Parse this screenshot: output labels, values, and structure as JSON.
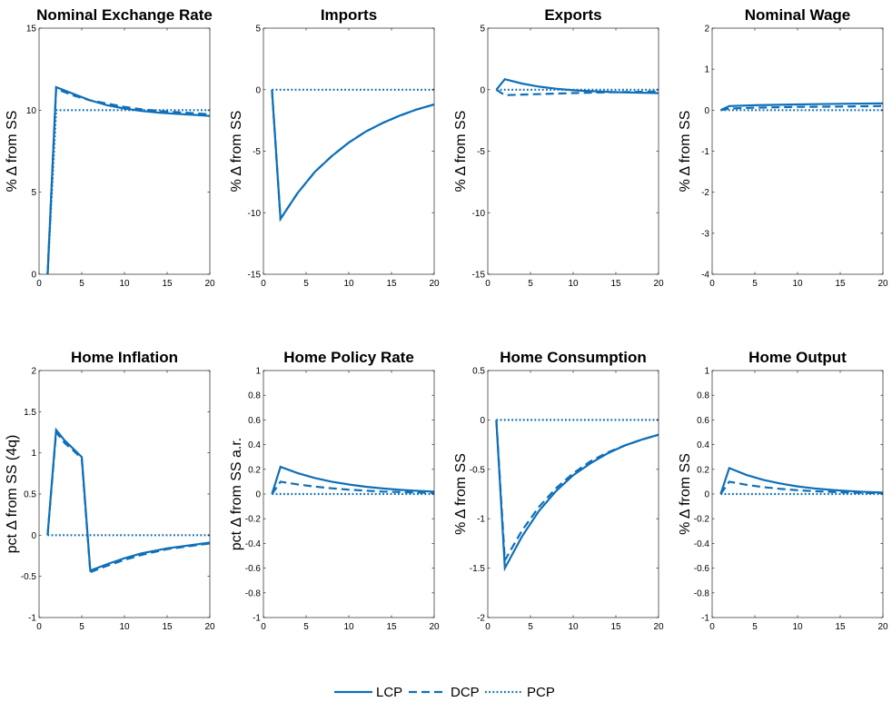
{
  "chart_data": {
    "type": "line",
    "grid": false,
    "legend": {
      "placement": "bottom-center",
      "entries": [
        {
          "label": "LCP",
          "style": "solid"
        },
        {
          "label": "DCP",
          "style": "dashed"
        },
        {
          "label": "PCP",
          "style": "dotted"
        }
      ]
    },
    "line_color": "#0f6fb8",
    "panels": [
      {
        "title": "Nominal Exchange Rate",
        "ylabel": "% Δ from SS",
        "xlim": [
          0,
          20
        ],
        "ylim": [
          0,
          15
        ],
        "xticks": [
          0,
          5,
          10,
          15,
          20
        ],
        "yticks": [
          0,
          5,
          10,
          15
        ],
        "series": [
          {
            "name": "LCP",
            "x": [
              1,
              2,
              4,
              6,
              8,
              10,
              12,
              14,
              16,
              18,
              20
            ],
            "y": [
              0,
              11.4,
              11.0,
              10.6,
              10.3,
              10.1,
              9.95,
              9.85,
              9.78,
              9.72,
              9.65
            ]
          },
          {
            "name": "DCP",
            "x": [
              1,
              2,
              4,
              6,
              8,
              10,
              12,
              14,
              16,
              18,
              20
            ],
            "y": [
              0,
              11.3,
              10.9,
              10.6,
              10.4,
              10.2,
              10.05,
              9.95,
              9.88,
              9.82,
              9.75
            ]
          },
          {
            "name": "PCP",
            "x": [
              1,
              2,
              20
            ],
            "y": [
              0,
              10,
              10
            ]
          }
        ]
      },
      {
        "title": "Imports",
        "ylabel": "% Δ from SS",
        "xlim": [
          0,
          20
        ],
        "ylim": [
          -15,
          5
        ],
        "xticks": [
          0,
          5,
          10,
          15,
          20
        ],
        "yticks": [
          -15,
          -10,
          -5,
          0,
          5
        ],
        "series": [
          {
            "name": "LCP",
            "x": [
              1,
              2,
              4,
              6,
              8,
              10,
              12,
              14,
              16,
              18,
              20
            ],
            "y": [
              0,
              -10.5,
              -8.4,
              -6.7,
              -5.4,
              -4.3,
              -3.4,
              -2.7,
              -2.1,
              -1.6,
              -1.2
            ]
          },
          {
            "name": "DCP",
            "x": [
              1,
              2,
              4,
              6,
              8,
              10,
              12,
              14,
              16,
              18,
              20
            ],
            "y": [
              0,
              -10.5,
              -8.4,
              -6.7,
              -5.4,
              -4.3,
              -3.4,
              -2.7,
              -2.1,
              -1.6,
              -1.2
            ]
          },
          {
            "name": "PCP",
            "x": [
              1,
              20
            ],
            "y": [
              0,
              0
            ]
          }
        ]
      },
      {
        "title": "Exports",
        "ylabel": "% Δ from SS",
        "xlim": [
          0,
          20
        ],
        "ylim": [
          -15,
          5
        ],
        "xticks": [
          0,
          5,
          10,
          15,
          20
        ],
        "yticks": [
          -15,
          -10,
          -5,
          0,
          5
        ],
        "series": [
          {
            "name": "LCP",
            "x": [
              1,
              2,
              4,
              6,
              8,
              10,
              12,
              15,
              20
            ],
            "y": [
              0,
              0.85,
              0.5,
              0.25,
              0.08,
              -0.05,
              -0.12,
              -0.2,
              -0.28
            ]
          },
          {
            "name": "DCP",
            "x": [
              1,
              2,
              5,
              10,
              15,
              20
            ],
            "y": [
              0,
              -0.45,
              -0.38,
              -0.28,
              -0.2,
              -0.15
            ]
          },
          {
            "name": "PCP",
            "x": [
              1,
              20
            ],
            "y": [
              0,
              0
            ]
          }
        ]
      },
      {
        "title": "Nominal Wage",
        "ylabel": "% Δ from SS",
        "xlim": [
          0,
          20
        ],
        "ylim": [
          -4,
          2
        ],
        "xticks": [
          0,
          5,
          10,
          15,
          20
        ],
        "yticks": [
          -4,
          -3,
          -2,
          -1,
          0,
          1,
          2
        ],
        "series": [
          {
            "name": "LCP",
            "x": [
              1,
              2,
              5,
              10,
              15,
              20
            ],
            "y": [
              0,
              0.1,
              0.12,
              0.14,
              0.155,
              0.165
            ]
          },
          {
            "name": "DCP",
            "x": [
              1,
              2,
              5,
              10,
              15,
              20
            ],
            "y": [
              0,
              0.04,
              0.06,
              0.08,
              0.09,
              0.1
            ]
          },
          {
            "name": "PCP",
            "x": [
              1,
              20
            ],
            "y": [
              0,
              0
            ]
          }
        ]
      },
      {
        "title": "Home Inflation",
        "ylabel": "pct  Δ from SS (4q)",
        "xlim": [
          0,
          20
        ],
        "ylim": [
          -1,
          2
        ],
        "xticks": [
          0,
          5,
          10,
          15,
          20
        ],
        "yticks": [
          -1,
          -0.5,
          0,
          0.5,
          1,
          1.5,
          2
        ],
        "series": [
          {
            "name": "LCP",
            "x": [
              1,
              2,
              3,
              4,
              5,
              6,
              8,
              10,
              12,
              15,
              20
            ],
            "y": [
              0,
              1.28,
              1.15,
              1.05,
              0.95,
              -0.43,
              -0.35,
              -0.28,
              -0.22,
              -0.16,
              -0.09
            ]
          },
          {
            "name": "DCP",
            "x": [
              1,
              2,
              3,
              4,
              5,
              6,
              8,
              10,
              12,
              15,
              20
            ],
            "y": [
              0,
              1.25,
              1.12,
              1.03,
              0.93,
              -0.45,
              -0.37,
              -0.3,
              -0.24,
              -0.17,
              -0.1
            ]
          },
          {
            "name": "PCP",
            "x": [
              1,
              20
            ],
            "y": [
              0,
              0
            ]
          }
        ]
      },
      {
        "title": "Home Policy Rate",
        "ylabel": "pct  Δ from SS a.r.",
        "xlim": [
          0,
          20
        ],
        "ylim": [
          -1,
          1
        ],
        "xticks": [
          0,
          5,
          10,
          15,
          20
        ],
        "yticks": [
          -1,
          -0.8,
          -0.6,
          -0.4,
          -0.2,
          0,
          0.2,
          0.4,
          0.6,
          0.8,
          1
        ],
        "series": [
          {
            "name": "LCP",
            "x": [
              1,
              2,
              4,
              6,
              8,
              10,
              12,
              14,
              16,
              18,
              20
            ],
            "y": [
              0,
              0.22,
              0.17,
              0.13,
              0.1,
              0.077,
              0.059,
              0.045,
              0.034,
              0.026,
              0.02
            ]
          },
          {
            "name": "DCP",
            "x": [
              1,
              2,
              4,
              6,
              8,
              10,
              12,
              14,
              16,
              18,
              20
            ],
            "y": [
              0,
              0.1,
              0.078,
              0.06,
              0.046,
              0.035,
              0.027,
              0.02,
              0.016,
              0.012,
              0.01
            ]
          },
          {
            "name": "PCP",
            "x": [
              1,
              20
            ],
            "y": [
              0,
              0
            ]
          }
        ]
      },
      {
        "title": "Home Consumption",
        "ylabel": "% Δ from SS",
        "xlim": [
          0,
          20
        ],
        "ylim": [
          -2,
          0.5
        ],
        "xticks": [
          0,
          5,
          10,
          15,
          20
        ],
        "yticks": [
          -2,
          -1.5,
          -1,
          -0.5,
          0,
          0.5
        ],
        "series": [
          {
            "name": "LCP",
            "x": [
              1,
              2,
              4,
              6,
              8,
              10,
              12,
              14,
              16,
              18,
              20
            ],
            "y": [
              0,
              -1.5,
              -1.18,
              -0.92,
              -0.72,
              -0.56,
              -0.44,
              -0.34,
              -0.26,
              -0.2,
              -0.15
            ]
          },
          {
            "name": "DCP",
            "x": [
              1,
              2,
              4,
              6,
              8,
              10,
              12,
              14,
              16,
              18,
              20
            ],
            "y": [
              0,
              -1.42,
              -1.12,
              -0.88,
              -0.69,
              -0.54,
              -0.42,
              -0.33,
              -0.26,
              -0.2,
              -0.15
            ]
          },
          {
            "name": "PCP",
            "x": [
              1,
              20
            ],
            "y": [
              0,
              0
            ]
          }
        ]
      },
      {
        "title": "Home Output",
        "ylabel": "% Δ from SS",
        "xlim": [
          0,
          20
        ],
        "ylim": [
          -1,
          1
        ],
        "xticks": [
          0,
          5,
          10,
          15,
          20
        ],
        "yticks": [
          -1,
          -0.8,
          -0.6,
          -0.4,
          -0.2,
          0,
          0.2,
          0.4,
          0.6,
          0.8,
          1
        ],
        "series": [
          {
            "name": "LCP",
            "x": [
              1,
              2,
              4,
              6,
              8,
              10,
              12,
              14,
              16,
              18,
              20
            ],
            "y": [
              0,
              0.21,
              0.155,
              0.115,
              0.085,
              0.062,
              0.045,
              0.033,
              0.024,
              0.017,
              0.012
            ]
          },
          {
            "name": "DCP",
            "x": [
              1,
              2,
              4,
              6,
              8,
              10,
              12,
              14,
              16,
              18,
              20
            ],
            "y": [
              0,
              0.1,
              0.075,
              0.056,
              0.042,
              0.031,
              0.023,
              0.017,
              0.012,
              0.009,
              0.007
            ]
          },
          {
            "name": "PCP",
            "x": [
              1,
              20
            ],
            "y": [
              0,
              0
            ]
          }
        ]
      }
    ]
  }
}
